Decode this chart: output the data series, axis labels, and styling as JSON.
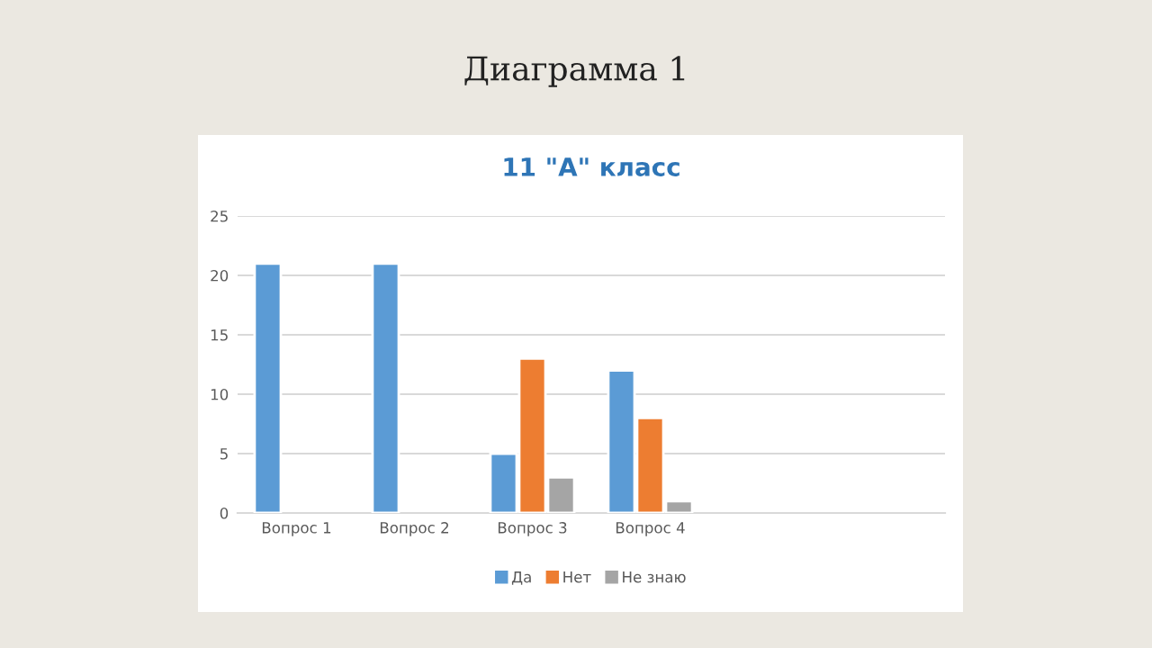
{
  "chart_data": {
    "type": "bar",
    "title": "11 \"А\" класс",
    "annotations": [
      "Диаграмма 1"
    ],
    "categories": [
      "Вопрос 1",
      "Вопрос 2",
      "Вопрос 3",
      "Вопрос 4",
      null,
      null
    ],
    "series": [
      {
        "name": "Да",
        "color": "#5b9bd5",
        "values": [
          21,
          21,
          5,
          12,
          null,
          null
        ]
      },
      {
        "name": "Нет",
        "color": "#ed7d31",
        "values": [
          null,
          null,
          13,
          8,
          null,
          null
        ]
      },
      {
        "name": "Не знаю",
        "color": "#a5a5a5",
        "values": [
          null,
          null,
          3,
          1,
          null,
          null
        ]
      }
    ],
    "ylim": [
      0,
      25
    ],
    "yticks": [
      0,
      5,
      10,
      15,
      20,
      25
    ],
    "grid": "y",
    "legend": "bottom"
  }
}
